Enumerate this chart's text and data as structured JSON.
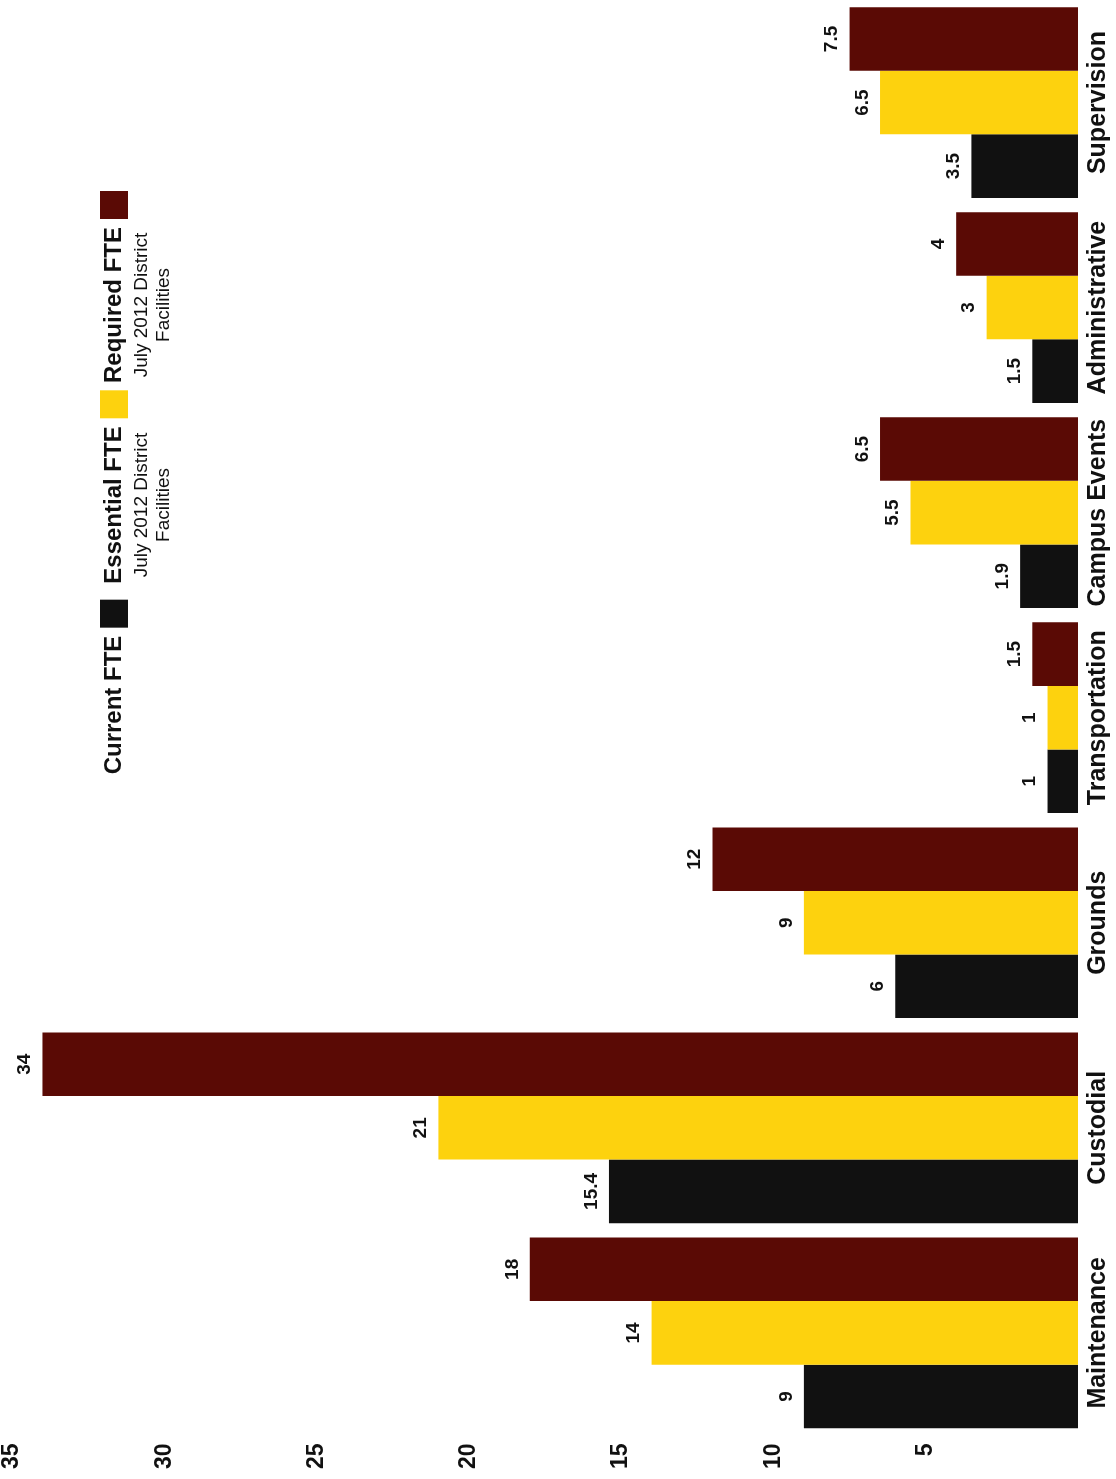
{
  "chart_data": {
    "type": "bar",
    "orientation": "horizontal",
    "categories": [
      "Supervision",
      "Administrative",
      "Campus Events",
      "Transportation",
      "Grounds",
      "Custodial",
      "Maintenance"
    ],
    "series": [
      {
        "name": "Required FTE\nJuly 2012 District Facilities",
        "color": "#5a0a05",
        "values": [
          7.5,
          4,
          6.5,
          1.5,
          12,
          34,
          18
        ]
      },
      {
        "name": "Essential FTE\nJuly 2012 District Facilities",
        "color": "#fdd20e",
        "values": [
          6.5,
          3,
          5.5,
          1,
          9,
          21,
          14
        ]
      },
      {
        "name": "Current FTE",
        "color": "#111111",
        "values": [
          3.5,
          1.5,
          1.9,
          1,
          6,
          15.4,
          9
        ]
      }
    ],
    "xlim": [
      35,
      0
    ],
    "xticks": [
      35,
      30,
      25,
      20,
      15,
      10,
      5
    ],
    "grid": false,
    "legend": "top left",
    "data_labels": true
  }
}
